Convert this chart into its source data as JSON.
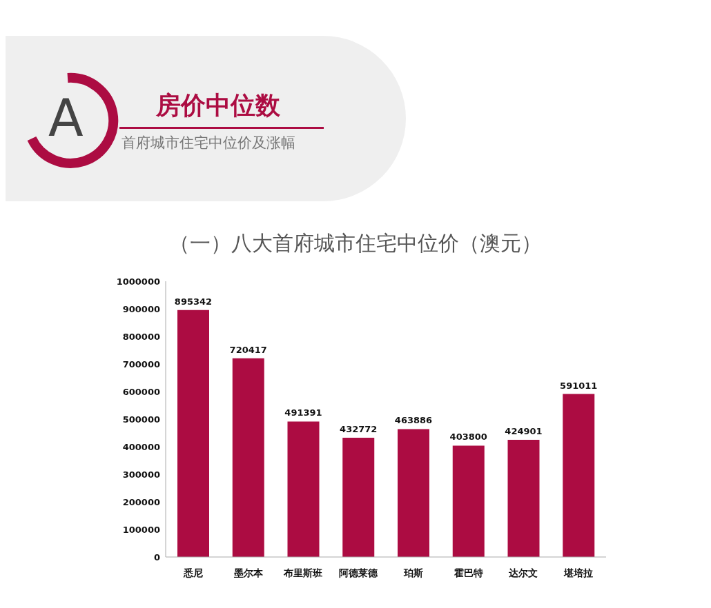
{
  "chart_data": {
    "type": "bar",
    "title": "（一）八大首府城市住宅中位价（澳元）",
    "annotations": [
      "A",
      "房价中位数",
      "首府城市住宅中位价及涨幅"
    ],
    "categories": [
      "悉尼",
      "墨尔本",
      "布里斯班",
      "阿德莱德",
      "珀斯",
      "霍巴特",
      "达尔文",
      "堪培拉"
    ],
    "values": [
      895342,
      720417,
      491391,
      432772,
      463886,
      403800,
      424901,
      591011
    ],
    "color": "#ac0c42",
    "ylim": [
      0,
      1000000
    ],
    "yticks": [
      0,
      100000,
      200000,
      300000,
      400000,
      500000,
      600000,
      700000,
      800000,
      900000,
      1000000
    ],
    "grid": false,
    "legend": false,
    "data_labels": true
  }
}
